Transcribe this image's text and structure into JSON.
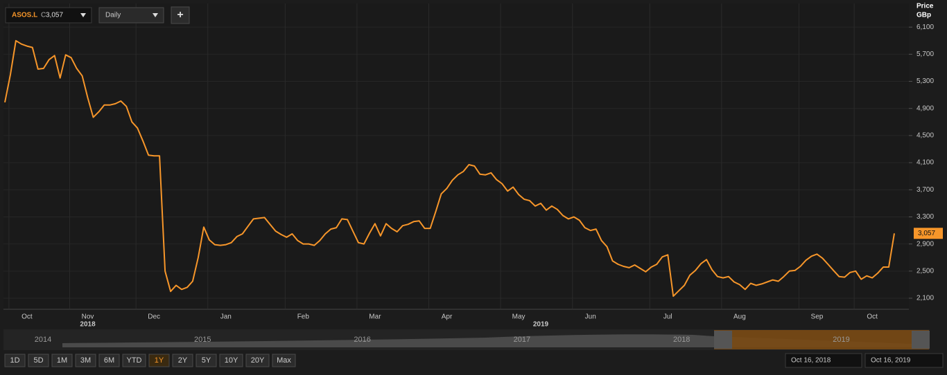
{
  "ui": {
    "symbol": "ASOS.L",
    "close_prefix": "C",
    "close_value": "3,057",
    "interval": "Daily",
    "add_button": "+",
    "navigator_years": [
      "2014",
      "2015",
      "2016",
      "2017",
      "2018",
      "2019"
    ],
    "range_buttons": [
      "1D",
      "5D",
      "1M",
      "3M",
      "6M",
      "YTD",
      "1Y",
      "2Y",
      "5Y",
      "10Y",
      "20Y",
      "Max"
    ],
    "active_range": "1Y",
    "date_from": "Oct 16, 2018",
    "date_to": "Oct 16, 2019"
  },
  "chart_data": {
    "type": "line",
    "y_axis_title": [
      "Price",
      "GBp"
    ],
    "color": "#f7962a",
    "grid": true,
    "categories": [
      null,
      null,
      null,
      null,
      "Oct",
      null,
      null,
      null,
      null,
      null,
      null,
      null,
      null,
      null,
      null,
      "Nov",
      null,
      null,
      null,
      null,
      null,
      null,
      null,
      null,
      null,
      null,
      null,
      "Dec",
      null,
      null,
      null,
      null,
      null,
      null,
      null,
      null,
      null,
      null,
      null,
      null,
      "Jan",
      null,
      null,
      null,
      null,
      null,
      null,
      null,
      null,
      null,
      null,
      null,
      null,
      null,
      "Feb",
      null,
      null,
      null,
      null,
      null,
      null,
      null,
      null,
      null,
      null,
      null,
      null,
      "Mar",
      null,
      null,
      null,
      null,
      null,
      null,
      null,
      null,
      null,
      null,
      null,
      null,
      "Apr",
      null,
      null,
      null,
      null,
      null,
      null,
      null,
      null,
      null,
      null,
      null,
      null,
      "May",
      null,
      null,
      null,
      null,
      null,
      null,
      null,
      null,
      null,
      null,
      null,
      null,
      "Jun",
      null,
      null,
      null,
      null,
      null,
      null,
      null,
      null,
      null,
      null,
      null,
      null,
      null,
      "Jul",
      null,
      null,
      null,
      null,
      null,
      null,
      null,
      null,
      null,
      null,
      null,
      null,
      "Aug",
      null,
      null,
      null,
      null,
      null,
      null,
      null,
      null,
      null,
      null,
      null,
      null,
      null,
      "Sep",
      null,
      null,
      null,
      null,
      null,
      null,
      null,
      null,
      null,
      "Oct",
      null,
      null,
      null,
      null
    ],
    "year_labels": [
      {
        "label": "2018",
        "category": 15
      },
      {
        "label": "2019",
        "category": 97
      }
    ],
    "values": [
      4990,
      5400,
      5900,
      5850,
      5820,
      5800,
      5480,
      5490,
      5620,
      5680,
      5350,
      5690,
      5650,
      5490,
      5380,
      5060,
      4770,
      4850,
      4950,
      4950,
      4970,
      5010,
      4930,
      4700,
      4610,
      4420,
      4210,
      4200,
      4200,
      2500,
      2200,
      2290,
      2230,
      2260,
      2350,
      2700,
      3150,
      2960,
      2890,
      2880,
      2890,
      2920,
      3010,
      3050,
      3160,
      3270,
      3280,
      3290,
      3190,
      3090,
      3040,
      3000,
      3050,
      2950,
      2900,
      2900,
      2880,
      2950,
      3050,
      3120,
      3140,
      3270,
      3260,
      3090,
      2920,
      2900,
      3060,
      3200,
      3020,
      3200,
      3130,
      3080,
      3170,
      3190,
      3230,
      3240,
      3130,
      3130,
      3380,
      3640,
      3720,
      3840,
      3920,
      3970,
      4070,
      4050,
      3930,
      3920,
      3950,
      3850,
      3790,
      3680,
      3740,
      3630,
      3560,
      3540,
      3460,
      3500,
      3400,
      3460,
      3410,
      3320,
      3270,
      3300,
      3250,
      3140,
      3100,
      3120,
      2950,
      2860,
      2650,
      2600,
      2570,
      2550,
      2590,
      2540,
      2490,
      2560,
      2600,
      2710,
      2740,
      2130,
      2210,
      2290,
      2440,
      2510,
      2610,
      2670,
      2520,
      2420,
      2400,
      2420,
      2340,
      2300,
      2230,
      2320,
      2290,
      2310,
      2340,
      2370,
      2350,
      2420,
      2500,
      2510,
      2570,
      2660,
      2720,
      2750,
      2690,
      2600,
      2510,
      2420,
      2410,
      2480,
      2500,
      2380,
      2430,
      2400,
      2470,
      2560,
      2560,
      3057
    ],
    "last_label": "3,057",
    "ylim": [
      1947,
      6449
    ],
    "yticks": [
      {
        "value": 2100,
        "label": "2,100"
      },
      {
        "value": 2500,
        "label": "2,500"
      },
      {
        "value": 2900,
        "label": "2,900"
      },
      {
        "value": 3300,
        "label": "3,300"
      },
      {
        "value": 3700,
        "label": "3,700"
      },
      {
        "value": 4100,
        "label": "4,100"
      },
      {
        "value": 4500,
        "label": "4,500"
      },
      {
        "value": 4900,
        "label": "4,900"
      },
      {
        "value": 5300,
        "label": "5,300"
      },
      {
        "value": 5700,
        "label": "5,700"
      },
      {
        "value": 6100,
        "label": "6,100"
      }
    ]
  }
}
